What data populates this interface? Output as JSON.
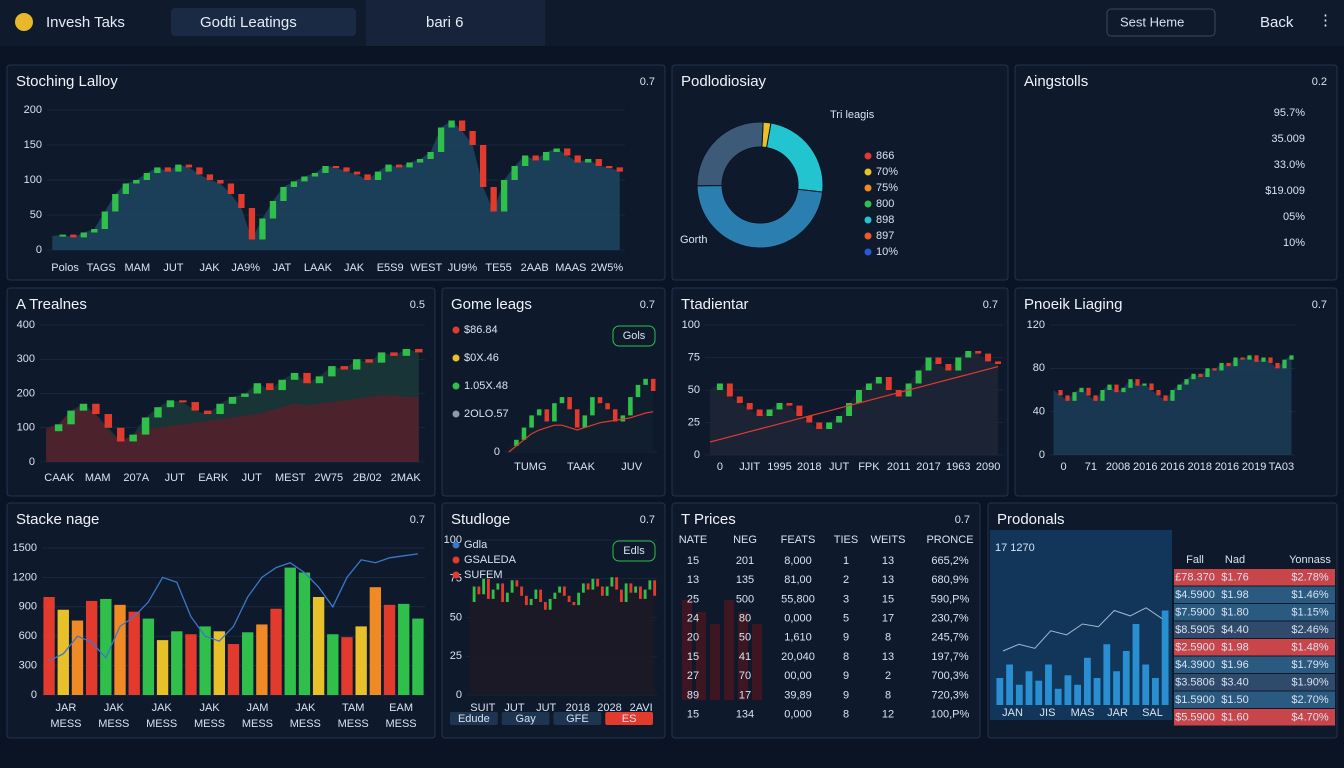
{
  "header": {
    "app": "Invesh Taks",
    "search": "Godti Leatings",
    "tab": "bari 6",
    "button": "Sest Heme",
    "back": "Back"
  },
  "panels": [
    {
      "title": "Stoching Lalloy",
      "badge": "0.7",
      "chart": {
        "type": "candlestick",
        "ylim": [
          0,
          200
        ],
        "yticks": [
          0,
          50,
          100,
          150,
          200
        ],
        "fill": "#1d4660",
        "values": [
          20,
          22,
          18,
          25,
          30,
          55,
          80,
          95,
          100,
          110,
          118,
          112,
          122,
          118,
          108,
          100,
          95,
          80,
          60,
          15,
          45,
          70,
          90,
          98,
          105,
          110,
          120,
          118,
          112,
          108,
          100,
          112,
          122,
          118,
          125,
          130,
          140,
          175,
          185,
          170,
          150,
          90,
          55,
          100,
          120,
          135,
          128,
          140,
          145,
          135,
          125,
          130,
          120,
          118,
          112
        ],
        "xlabels": [
          "Polos",
          "TAGS",
          "MAM",
          "JUT",
          "JAK",
          "JA9%",
          "JAT",
          "LAAK",
          "JAK",
          "E5S9",
          "WEST",
          "JU9%",
          "TE55",
          "2AAB",
          "MAAS",
          "2W5%"
        ]
      }
    },
    {
      "title": "Podlodiosiay",
      "badge": "",
      "chart": {
        "type": "donut",
        "values": [
          2,
          24,
          48,
          26
        ],
        "colors": [
          "#e8c02a",
          "#22c4cf",
          "#2a7fb0",
          "#3d5a78"
        ],
        "label_top": "Tri leagis",
        "label_bottom": "Gorth",
        "legend": [
          {
            "label": "866",
            "color": "#e23b2e"
          },
          {
            "label": "70%",
            "color": "#e8c02a"
          },
          {
            "label": "75%",
            "color": "#f08a24"
          },
          {
            "label": "800",
            "color": "#2fbf4a"
          },
          {
            "label": "898",
            "color": "#22c4cf"
          },
          {
            "label": "897",
            "color": "#f05a24"
          },
          {
            "label": "10%",
            "color": "#2a56d8"
          }
        ]
      }
    },
    {
      "title": "Aingstolls",
      "badge": "0.2",
      "chart": {
        "type": "list",
        "items": [
          "95.7%",
          "35.009",
          "33.0%",
          "$19.009",
          "05%",
          "10%"
        ]
      }
    },
    {
      "title": "A Trealnes",
      "badge": "0.5",
      "chart": {
        "type": "candlestick",
        "ylim": [
          0,
          400
        ],
        "yticks": [
          0,
          100,
          200,
          300,
          400
        ],
        "fill": "#1a3a3a",
        "values": [
          90,
          110,
          150,
          170,
          140,
          100,
          60,
          80,
          130,
          160,
          180,
          175,
          150,
          140,
          170,
          190,
          200,
          230,
          210,
          240,
          260,
          230,
          250,
          280,
          270,
          300,
          290,
          320,
          310,
          330,
          320
        ],
        "area": [
          100,
          110,
          150,
          160,
          140,
          90,
          60,
          80,
          95,
          100,
          105,
          110,
          115,
          120,
          125,
          130,
          135,
          140,
          150,
          160,
          170,
          165,
          170,
          175,
          180,
          185,
          190,
          195,
          195,
          190,
          190
        ],
        "area_color": "#5a1f2a",
        "xlabels": [
          "CAAK",
          "MAM",
          "207A",
          "JUT",
          "EARK",
          "JUT",
          "MEST",
          "2W75",
          "2B/02",
          "2MAK"
        ]
      }
    },
    {
      "title": "Gome leags",
      "badge": "0.7",
      "chart": {
        "type": "candlestick",
        "ylim": [
          0,
          100
        ],
        "yticks": [
          0
        ],
        "fill": "#10202e",
        "values": [
          5,
          10,
          20,
          30,
          35,
          25,
          40,
          45,
          35,
          20,
          30,
          45,
          40,
          35,
          25,
          30,
          45,
          55,
          60,
          50
        ],
        "trend": [
          0,
          5,
          10,
          15,
          18,
          20,
          22,
          22,
          20,
          18,
          20,
          22,
          24,
          25,
          26,
          27,
          28,
          30,
          32,
          33
        ],
        "trend_color": "#e23b2e",
        "legend": [
          {
            "label": "$86.84",
            "color": "#e23b2e"
          },
          {
            "label": "$0X.46",
            "color": "#e8c02a"
          },
          {
            "label": "1.05X.48",
            "color": "#2fbf4a"
          },
          {
            "label": "2OLO.57",
            "color": "#8a9ab0"
          }
        ],
        "button": "Gols",
        "xlabels": [
          "TUMG",
          "TAAK",
          "JUV"
        ]
      }
    },
    {
      "title": "Ttadientar",
      "badge": "0.7",
      "chart": {
        "type": "candlestick",
        "ylim": [
          0,
          100
        ],
        "yticks": [
          0,
          25,
          50,
          75,
          100
        ],
        "fill": "#1e2636",
        "values": [
          50,
          55,
          45,
          40,
          35,
          30,
          35,
          40,
          38,
          30,
          25,
          20,
          25,
          30,
          40,
          50,
          55,
          60,
          50,
          45,
          55,
          65,
          75,
          70,
          65,
          75,
          80,
          78,
          72,
          70
        ],
        "trend": [
          10,
          12,
          14,
          16,
          18,
          20,
          22,
          24,
          26,
          28,
          30,
          32,
          34,
          36,
          38,
          40,
          42,
          44,
          46,
          48,
          50,
          52,
          54,
          56,
          58,
          60,
          62,
          64,
          66,
          68
        ],
        "trend_color": "#e23b2e",
        "xlabels": [
          "0",
          "JJIT",
          "1995",
          "2018",
          "JUT",
          "FPK",
          "2011",
          "2017",
          "1963",
          "2090"
        ]
      }
    },
    {
      "title": "Pnoeik Liaging",
      "badge": "0.7",
      "chart": {
        "type": "candlestick",
        "ylim": [
          0,
          120
        ],
        "yticks": [
          0,
          40,
          80,
          120
        ],
        "fill": "#1b3d58",
        "values": [
          60,
          55,
          50,
          58,
          62,
          55,
          50,
          60,
          65,
          58,
          62,
          70,
          64,
          66,
          60,
          55,
          50,
          60,
          65,
          70,
          75,
          72,
          80,
          78,
          85,
          82,
          90,
          88,
          92,
          86,
          90,
          85,
          80,
          88,
          92
        ],
        "xlabels": [
          "0",
          "71",
          "2008",
          "2016",
          "2016",
          "2018",
          "2016",
          "2019",
          "TA03"
        ]
      }
    },
    {
      "title": "Stacke nage",
      "badge": "0.7",
      "chart": {
        "type": "bar",
        "ylim": [
          0,
          1500
        ],
        "yticks": [
          0,
          300,
          600,
          900,
          1200,
          1500
        ],
        "values": [
          1000,
          870,
          760,
          960,
          980,
          920,
          850,
          780,
          560,
          650,
          620,
          700,
          650,
          520,
          640,
          720,
          880,
          1300,
          1250,
          1000,
          620,
          590,
          700,
          1100,
          920,
          930,
          780
        ],
        "colors": [
          "#e23b2e",
          "#e8c02a",
          "#f08a24",
          "#e23b2e",
          "#2fbf4a",
          "#f08a24",
          "#e23b2e",
          "#2fbf4a",
          "#e8c02a",
          "#2fbf4a",
          "#e23b2e",
          "#2fbf4a",
          "#e8c02a",
          "#e23b2e",
          "#2fbf4a",
          "#f08a24",
          "#e23b2e",
          "#2fbf4a",
          "#2fbf4a",
          "#e8c02a",
          "#2fbf4a",
          "#e23b2e",
          "#e8c02a",
          "#f08a24",
          "#e23b2e",
          "#2fbf4a",
          "#2fbf4a"
        ],
        "line": [
          350,
          420,
          600,
          540,
          380,
          700,
          800,
          950,
          1200,
          1150,
          800,
          600,
          550,
          700,
          1000,
          1200,
          1300,
          1350,
          1250,
          1100,
          900,
          1200,
          1380,
          1350,
          1400,
          1420,
          1440
        ],
        "line_color": "#3a78c8",
        "xlabels": [
          "JAR",
          "JAK",
          "JAK",
          "JAK",
          "JAM",
          "JAK",
          "TAM",
          "EAM"
        ],
        "xlabels2": [
          "MESS",
          "MESS",
          "MESS",
          "MESS",
          "MESS",
          "MESS",
          "MESS",
          "MESS"
        ]
      }
    },
    {
      "title": "Studloge",
      "badge": "0.7",
      "chart": {
        "type": "candlestick",
        "ylim": [
          0,
          100
        ],
        "yticks": [
          0,
          25,
          50,
          75,
          100
        ],
        "fill": "#1e1a26",
        "values": [
          60,
          70,
          65,
          75,
          62,
          68,
          72,
          60,
          66,
          74,
          70,
          64,
          58,
          62,
          68,
          60,
          55,
          62,
          66,
          70,
          64,
          60,
          58,
          66,
          72,
          68,
          75,
          70,
          64,
          70,
          76,
          68,
          60,
          72,
          66,
          70,
          62,
          68,
          74,
          64
        ],
        "legend": [
          {
            "label": "Gdla",
            "color": "#3a78c8"
          },
          {
            "label": "GSALEDA",
            "color": "#e23b2e"
          },
          {
            "label": "SUFEM",
            "color": "#e23b2e"
          }
        ],
        "button": "Edls",
        "buttons": [
          "Edude",
          "Gay",
          "GFE",
          "ES"
        ],
        "xlabels": [
          "SUIT",
          "JUT",
          "JUT",
          "2018",
          "2028",
          "2AVI"
        ]
      }
    },
    {
      "title": "T Prices",
      "badge": "0.7",
      "chart": {
        "type": "table",
        "columns": [
          "NATE",
          "NEG",
          "FEATS",
          "TIES",
          "WEITS",
          "PRONCE"
        ],
        "rows": [
          [
            "15",
            "201",
            "8,000",
            "1",
            "13",
            "665,2%"
          ],
          [
            "13",
            "135",
            "81,00",
            "2",
            "13",
            "680,9%"
          ],
          [
            "25",
            "500",
            "55,800",
            "3",
            "15",
            "590,P%"
          ],
          [
            "24",
            "80",
            "0,000",
            "5",
            "17",
            "230,7%"
          ],
          [
            "20",
            "50",
            "1,610",
            "9",
            "8",
            "245,7%"
          ],
          [
            "15",
            "41",
            "20,040",
            "8",
            "13",
            "197,7%"
          ],
          [
            "27",
            "70",
            "00,00",
            "9",
            "2",
            "700,3%"
          ],
          [
            "89",
            "17",
            "39,89",
            "9",
            "8",
            "720,3%"
          ],
          [
            "15",
            "134",
            "0,000",
            "8",
            "12",
            "100,P%"
          ]
        ]
      }
    },
    {
      "title": "Prodonals",
      "badge": "",
      "chart": {
        "type": "combo",
        "big": "17 1270",
        "ylim": [
          0,
          100
        ],
        "color": "#2a8fd0",
        "values": [
          20,
          30,
          15,
          25,
          18,
          30,
          12,
          22,
          15,
          35,
          20,
          45,
          25,
          40,
          60,
          30,
          20,
          70
        ],
        "line": [
          40,
          45,
          42,
          55,
          52,
          60,
          58,
          70,
          66,
          72,
          64
        ],
        "line_color": "#9fb8d0",
        "xlabels": [
          "JAN",
          "JIS",
          "MAS",
          "JAR",
          "SAL"
        ],
        "columns": [
          "Fall",
          "Nad",
          "Yonnass"
        ],
        "rows": [
          [
            "£78.370",
            "$1.76",
            "$2.78%"
          ],
          [
            "$4.5900",
            "$1.98",
            "$1.46%"
          ],
          [
            "$7.5900",
            "$1.80",
            "$1.15%"
          ],
          [
            "$8.5905",
            "$4.40",
            "$2.46%"
          ],
          [
            "$2.5900",
            "$1.98",
            "$1.48%"
          ],
          [
            "$4.3900",
            "$1.96",
            "$1.79%"
          ],
          [
            "$3.5806",
            "$3.40",
            "$1.90%"
          ],
          [
            "$1.5900",
            "$1.50",
            "$2.70%"
          ],
          [
            "$5.5900",
            "$1.60",
            "$4.70%"
          ]
        ],
        "row_colors": [
          "#c8454a",
          "#2a5a80",
          "#2a5a80",
          "#2f4a6a",
          "#c8454a",
          "#2a5a80",
          "#2f4a6a",
          "#2a5a80",
          "#c8454a"
        ]
      }
    }
  ]
}
